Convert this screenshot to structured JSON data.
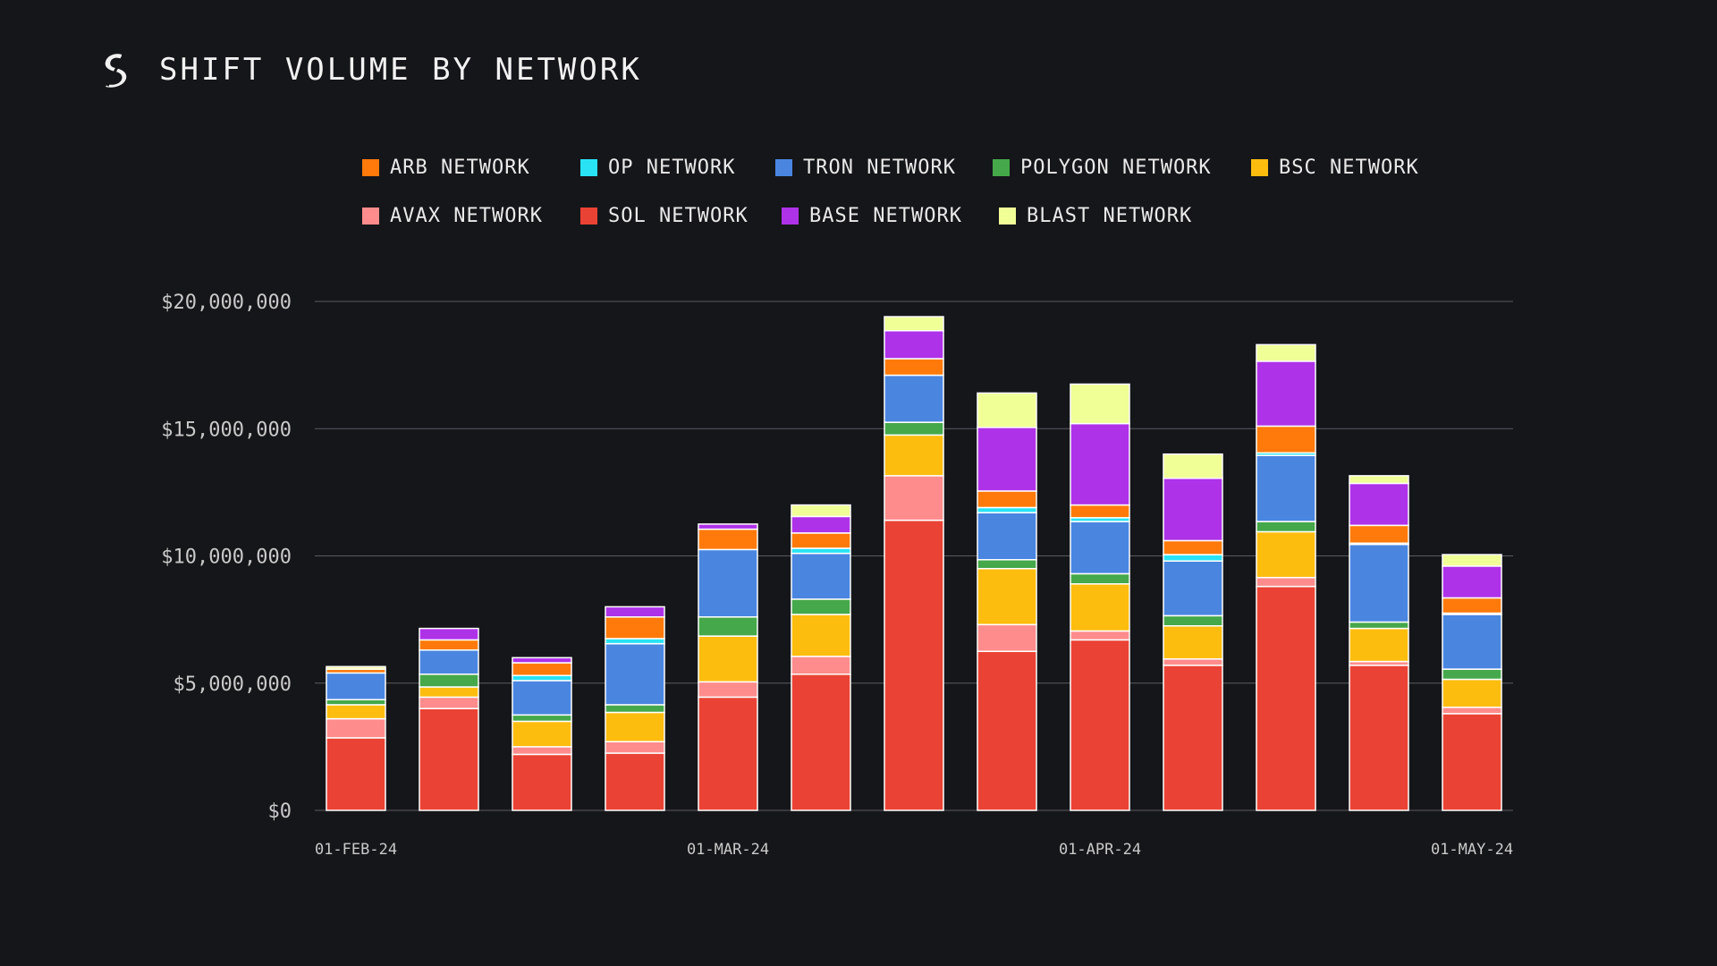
{
  "header": {
    "logo_icon": "sideshift-logo-icon",
    "title": "SHIFT VOLUME BY NETWORK"
  },
  "colors": {
    "background": "#15161a",
    "grid": "#5a5b60",
    "bar_stroke": "#ffffff",
    "ARB NETWORK": "#ff7a0a",
    "OP NETWORK": "#29e3f5",
    "TRON NETWORK": "#4a86e0",
    "POLYGON NETWORK": "#45a84a",
    "BSC NETWORK": "#fdbd0f",
    "AVAX NETWORK": "#ff8c8c",
    "SOL NETWORK": "#ea4335",
    "BASE NETWORK": "#ae32e8",
    "BLAST NETWORK": "#f0ff96"
  },
  "legend": {
    "rows": [
      [
        "ARB NETWORK",
        "OP NETWORK",
        "TRON NETWORK",
        "POLYGON NETWORK",
        "BSC NETWORK"
      ],
      [
        "AVAX NETWORK",
        "SOL NETWORK",
        "BASE NETWORK",
        "BLAST NETWORK"
      ]
    ]
  },
  "chart_data": {
    "type": "bar",
    "stacked": true,
    "title": "SHIFT VOLUME BY NETWORK",
    "xlabel": "",
    "ylabel": "",
    "ylim": [
      0,
      20000000
    ],
    "grid": true,
    "legend_position": "top",
    "y_ticks": [
      0,
      5000000,
      10000000,
      15000000,
      20000000
    ],
    "y_tick_labels": [
      "$0",
      "$5,000,000",
      "$10,000,000",
      "$15,000,000",
      "$20,000,000"
    ],
    "x_tick_labels": [
      {
        "index": 0,
        "label": "01-FEB-24"
      },
      {
        "index": 4,
        "label": "01-MAR-24"
      },
      {
        "index": 8,
        "label": "01-APR-24"
      },
      {
        "index": 12,
        "label": "01-MAY-24"
      }
    ],
    "stack_order": [
      "SOL NETWORK",
      "AVAX NETWORK",
      "BSC NETWORK",
      "POLYGON NETWORK",
      "TRON NETWORK",
      "OP NETWORK",
      "ARB NETWORK",
      "BASE NETWORK",
      "BLAST NETWORK"
    ],
    "series": [
      {
        "name": "SOL NETWORK",
        "values": [
          2850000,
          4000000,
          2200000,
          2250000,
          4450000,
          5350000,
          11400000,
          6250000,
          6700000,
          5700000,
          8800000,
          5700000,
          3800000
        ]
      },
      {
        "name": "AVAX NETWORK",
        "values": [
          750000,
          450000,
          300000,
          450000,
          600000,
          700000,
          1750000,
          1050000,
          350000,
          250000,
          350000,
          150000,
          250000
        ]
      },
      {
        "name": "BSC NETWORK",
        "values": [
          550000,
          400000,
          1000000,
          1150000,
          1800000,
          1650000,
          1600000,
          2200000,
          1850000,
          1300000,
          1800000,
          1300000,
          1100000
        ]
      },
      {
        "name": "POLYGON NETWORK",
        "values": [
          200000,
          500000,
          250000,
          300000,
          750000,
          600000,
          500000,
          350000,
          400000,
          400000,
          400000,
          250000,
          400000
        ]
      },
      {
        "name": "TRON NETWORK",
        "values": [
          1050000,
          950000,
          1350000,
          2400000,
          2650000,
          1800000,
          1850000,
          1850000,
          2050000,
          2150000,
          2600000,
          3050000,
          2150000
        ]
      },
      {
        "name": "OP NETWORK",
        "values": [
          0,
          0,
          200000,
          200000,
          0,
          200000,
          0,
          200000,
          150000,
          250000,
          100000,
          50000,
          50000
        ]
      },
      {
        "name": "ARB NETWORK",
        "values": [
          150000,
          400000,
          500000,
          850000,
          800000,
          600000,
          650000,
          650000,
          500000,
          550000,
          1050000,
          700000,
          600000
        ]
      },
      {
        "name": "BASE NETWORK",
        "values": [
          0,
          450000,
          200000,
          400000,
          200000,
          650000,
          1100000,
          2500000,
          3200000,
          2450000,
          2550000,
          1650000,
          1250000
        ]
      },
      {
        "name": "BLAST NETWORK",
        "values": [
          100000,
          0,
          0,
          0,
          0,
          450000,
          550000,
          1350000,
          1550000,
          950000,
          650000,
          300000,
          450000
        ]
      }
    ]
  }
}
